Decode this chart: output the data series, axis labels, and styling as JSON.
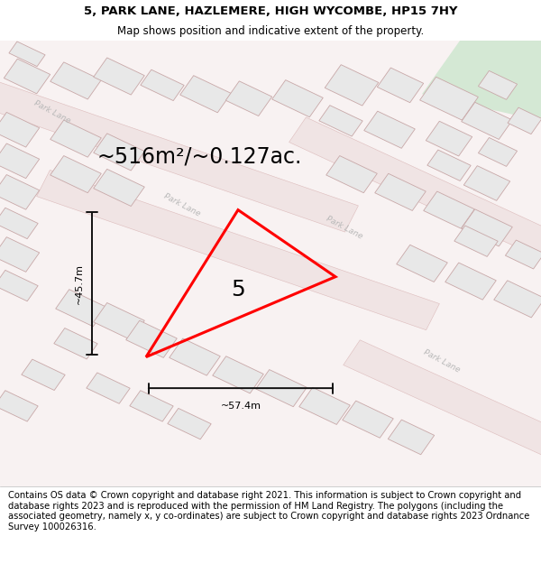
{
  "title_line1": "5, PARK LANE, HAZLEMERE, HIGH WYCOMBE, HP15 7HY",
  "title_line2": "Map shows position and indicative extent of the property.",
  "area_text": "~516m²/~0.127ac.",
  "width_label": "~57.4m",
  "height_label": "~45.7m",
  "property_number": "5",
  "footer_text": "Contains OS data © Crown copyright and database right 2021. This information is subject to Crown copyright and database rights 2023 and is reproduced with the permission of HM Land Registry. The polygons (including the associated geometry, namely x, y co-ordinates) are subject to Crown copyright and database rights 2023 Ordnance Survey 100026316.",
  "map_bg": "#f5eeee",
  "road_fill": "#f5eeee",
  "road_stripe_color": "#e8c8c8",
  "building_face": "#e8e8e8",
  "building_edge": "#c8a8a8",
  "green_color": "#d4e8d4",
  "property_color": "#ff0000",
  "dim_line_color": "#111111",
  "road_label_color": "#b8b8b8",
  "title_fontsize": 9.5,
  "subtitle_fontsize": 8.5,
  "area_fontsize": 17,
  "label_fontsize": 8,
  "prop_num_fontsize": 18,
  "footer_fontsize": 7.2,
  "road_label_fontsize": 6.5
}
